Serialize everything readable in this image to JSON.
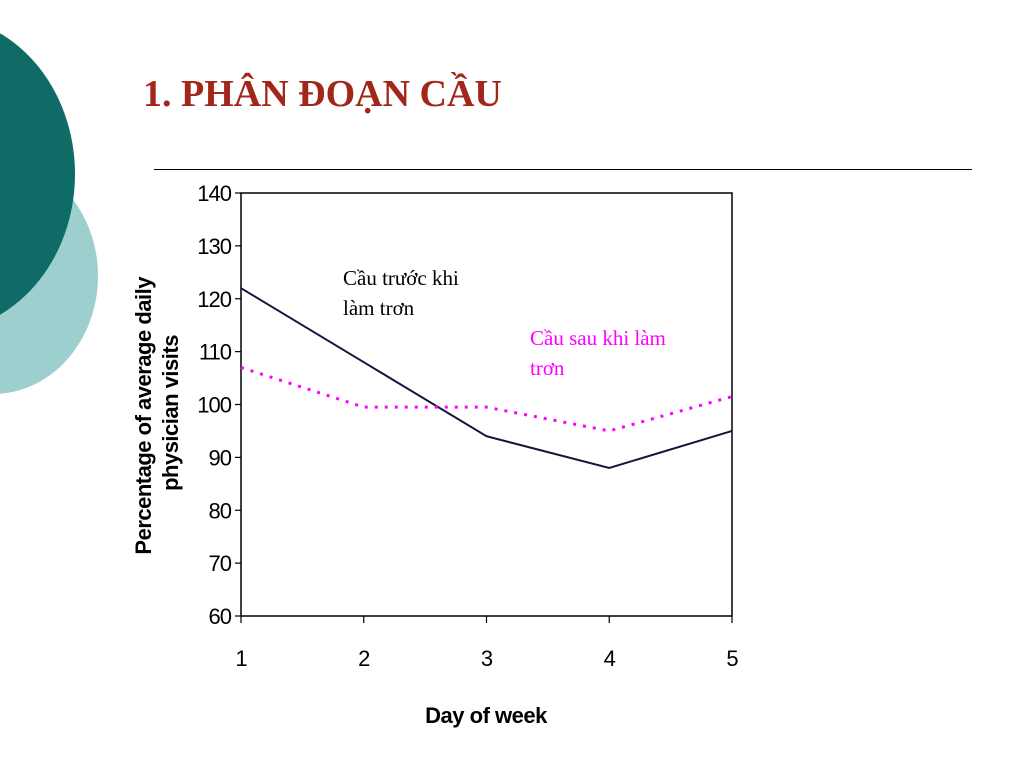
{
  "slide": {
    "title": "1. PHÂN ĐOẠN CẦU"
  },
  "colors": {
    "title": "#a2261a",
    "series_before": "#14143c",
    "series_after": "#ff00ff",
    "decor_dark": "#0e6b66",
    "decor_light": "#9ecfcf"
  },
  "chart_data": {
    "type": "line",
    "title": "",
    "xlabel": "Day of week",
    "ylabel_lines": [
      "Percentage of average daily",
      "physician visits"
    ],
    "x": [
      1,
      2,
      3,
      4,
      5
    ],
    "xlim": [
      1,
      5
    ],
    "ylim": [
      60,
      140
    ],
    "y_ticks": [
      60,
      70,
      80,
      90,
      100,
      110,
      120,
      130,
      140
    ],
    "grid": false,
    "legend": "none",
    "series": [
      {
        "values": [
          122,
          108,
          94,
          88,
          95
        ],
        "style": "solid",
        "color": "#14143c",
        "annotation_lines": [
          "Cầu trước khi",
          "làm trơn"
        ]
      },
      {
        "values": [
          107,
          99.5,
          99.5,
          95,
          101.5
        ],
        "style": "dotted",
        "color": "#ff00ff",
        "annotation_lines": [
          "Cầu sau khi làm",
          "trơn"
        ]
      }
    ]
  }
}
